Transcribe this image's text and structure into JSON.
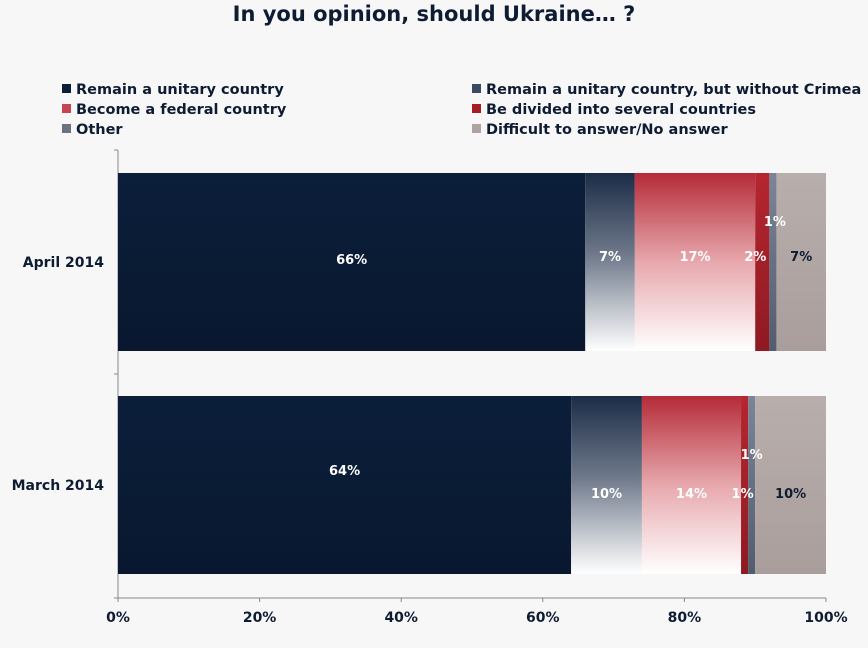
{
  "chart_data": {
    "type": "bar",
    "orientation": "horizontal",
    "stacked": true,
    "percent_stacked": true,
    "title": "In you opinion, should Ukraine… ?",
    "categories": [
      "April 2014",
      "March 2014"
    ],
    "series": [
      {
        "name": "Remain a unitary country",
        "color": "#0b1e3a",
        "values": [
          66,
          64
        ],
        "labels": [
          "66%",
          "64%"
        ]
      },
      {
        "name": "Remain a unitary country, but without Crimea",
        "color": "#3b4a63",
        "values": [
          7,
          10
        ],
        "labels": [
          "7%",
          "10%"
        ]
      },
      {
        "name": "Become a federal country",
        "color": "#c44650",
        "values": [
          17,
          14
        ],
        "labels": [
          "17%",
          "14%"
        ]
      },
      {
        "name": "Be divided into several countries",
        "color": "#a31c26",
        "values": [
          2,
          1
        ],
        "labels": [
          "2%",
          "1%"
        ]
      },
      {
        "name": "Other",
        "color": "#6a7383",
        "values": [
          1,
          1
        ],
        "labels": [
          "1%",
          "1%"
        ]
      },
      {
        "name": "Difficult to answer/No answer",
        "color": "#aea3a1",
        "values": [
          7,
          10
        ],
        "labels": [
          "7%",
          "10%"
        ]
      }
    ],
    "xlim": [
      0,
      100
    ],
    "xticks": [
      "0%",
      "20%",
      "40%",
      "60%",
      "80%",
      "100%"
    ],
    "legend_position": "top"
  }
}
